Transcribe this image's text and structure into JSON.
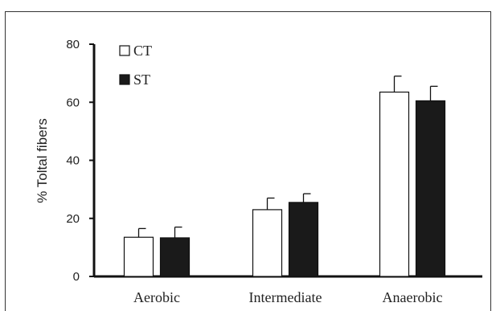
{
  "chart_data": {
    "type": "bar",
    "title": "",
    "xlabel": "",
    "ylabel": "% Toltal fibers",
    "ylim": [
      0,
      80
    ],
    "yticks": [
      0,
      20,
      40,
      60,
      80
    ],
    "categories": [
      "Aerobic",
      "Intermediate",
      "Anaerobic"
    ],
    "series": [
      {
        "name": "CT",
        "color": "#ffffff",
        "values": [
          13.5,
          23,
          63.5
        ],
        "errors": [
          3,
          4,
          5.5
        ]
      },
      {
        "name": "ST",
        "color": "#1a1a1a",
        "values": [
          13.3,
          25.5,
          60.5
        ],
        "errors": [
          3.7,
          3,
          5
        ]
      }
    ],
    "legend": "top-left",
    "grid": false
  }
}
